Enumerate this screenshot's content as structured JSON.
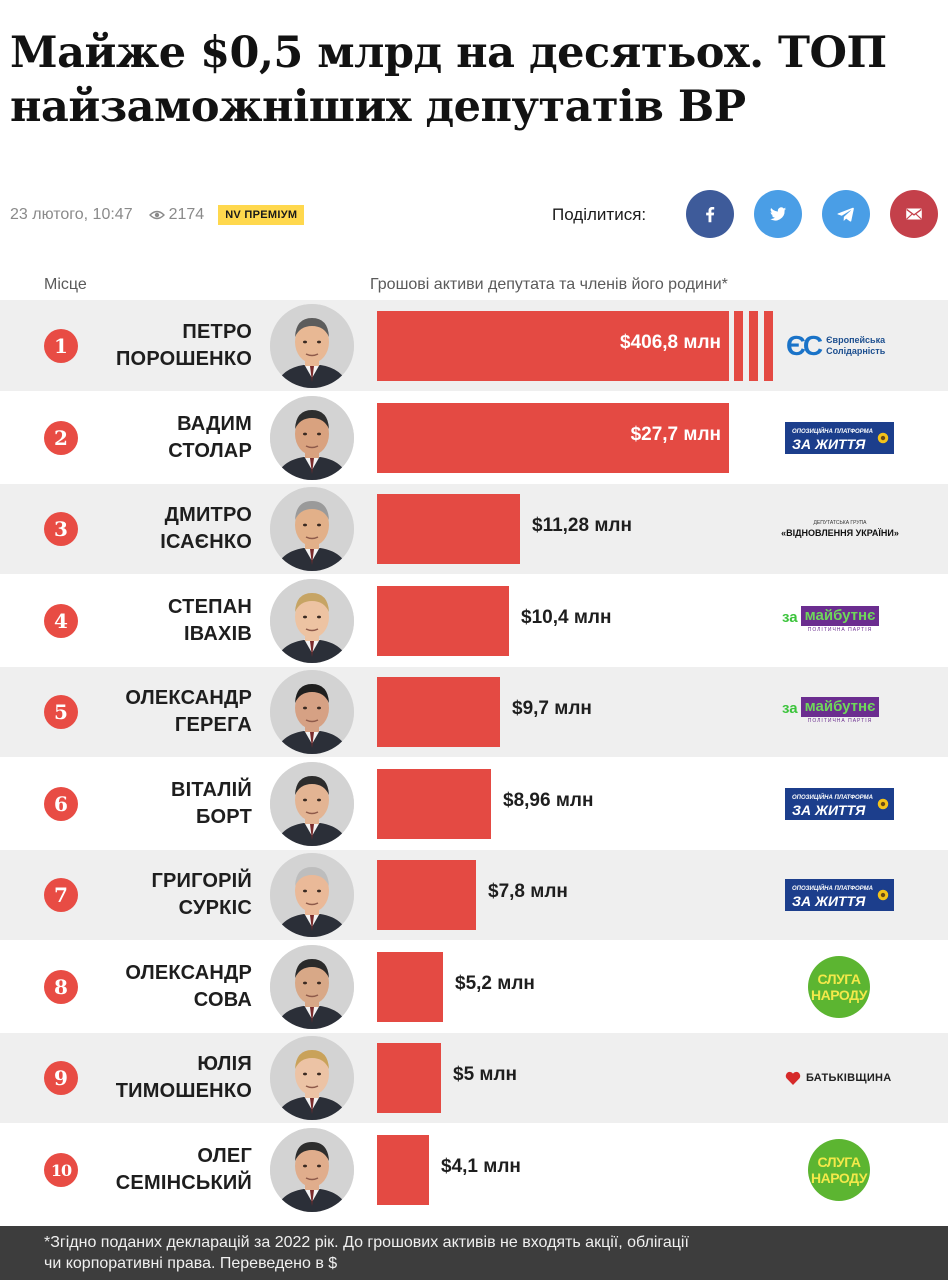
{
  "headline": {
    "line1": "Майже $0,5 млрд на десятьох. ТОП",
    "line2": "найзаможніших депутатів ВР"
  },
  "meta": {
    "date": "23 лютого, 10:47",
    "views": "2174",
    "badge": "NV ПРЕМІУМ"
  },
  "share": {
    "label": "Поділитися:",
    "buttons": [
      "facebook-icon",
      "twitter-icon",
      "telegram-icon",
      "mail-icon"
    ]
  },
  "columns": {
    "place": "Місце",
    "assets": "Грошові активи депутата та членів його родини*"
  },
  "parties": {
    "es": {
      "mark": "ЄС",
      "line1": "Європейська",
      "line2": "Солідарність"
    },
    "opzzh": {
      "line1": "ОПОЗИЦІЙНА ПЛАТФОРМА",
      "line2": "ЗА ЖИТТЯ"
    },
    "vu": {
      "small": "ДЕПУТАТСЬКА ГРУПА",
      "main": "«ВІДНОВЛЕННЯ УКРАЇНИ»"
    },
    "zm": {
      "za": "за",
      "main": "майбутнє",
      "sub": "ПОЛІТИЧНА ПАРТІЯ"
    },
    "sn": {
      "line1": "СЛУГА",
      "line2": "НАРОДУ"
    },
    "bat": {
      "name": "БАТЬКІВЩИНА"
    }
  },
  "chart_data": {
    "type": "bar",
    "orientation": "horizontal",
    "unit": "млн $",
    "axis_break": "first bar truncated",
    "colors": {
      "bar": "#e44a43",
      "rank": "#e84c44"
    },
    "items": [
      {
        "rank": "1",
        "first": "ПЕТРО",
        "last": "ПОРОШЕНКО",
        "value": 406.8,
        "label": "$406,8 млн",
        "party": "es"
      },
      {
        "rank": "2",
        "first": "ВАДИМ",
        "last": "СТОЛАР",
        "value": 27.7,
        "label": "$27,7 млн",
        "party": "opzzh"
      },
      {
        "rank": "3",
        "first": "ДМИТРО",
        "last": "ІСАЄНКО",
        "value": 11.28,
        "label": "$11,28 млн",
        "party": "vu"
      },
      {
        "rank": "4",
        "first": "СТЕПАН",
        "last": "ІВАХІВ",
        "value": 10.4,
        "label": "$10,4 млн",
        "party": "zm"
      },
      {
        "rank": "5",
        "first": "ОЛЕКСАНДР",
        "last": "ГЕРЕГА",
        "value": 9.7,
        "label": "$9,7 млн",
        "party": "zm"
      },
      {
        "rank": "6",
        "first": "ВІТАЛІЙ",
        "last": "БОРТ",
        "value": 8.96,
        "label": "$8,96 млн",
        "party": "opzzh"
      },
      {
        "rank": "7",
        "first": "ГРИГОРІЙ",
        "last": "СУРКІС",
        "value": 7.8,
        "label": "$7,8 млн",
        "party": "opzzh"
      },
      {
        "rank": "8",
        "first": "ОЛЕКСАНДР",
        "last": "СОВА",
        "value": 5.2,
        "label": "$5,2 млн",
        "party": "sn"
      },
      {
        "rank": "9",
        "first": "ЮЛІЯ",
        "last": "ТИМОШЕНКО",
        "value": 5,
        "label": "$5 млн",
        "party": "bat"
      },
      {
        "rank": "10",
        "first": "ОЛЕГ",
        "last": "СЕМІНСЬКИЙ",
        "value": 4.1,
        "label": "$4,1 млн",
        "party": "sn"
      }
    ]
  },
  "footnote": {
    "line1": "*Згідно поданих декларацій за 2022 рік. До грошових активів не входять акції, облігації",
    "line2": "чи корпоративні права. Переведено в $"
  }
}
